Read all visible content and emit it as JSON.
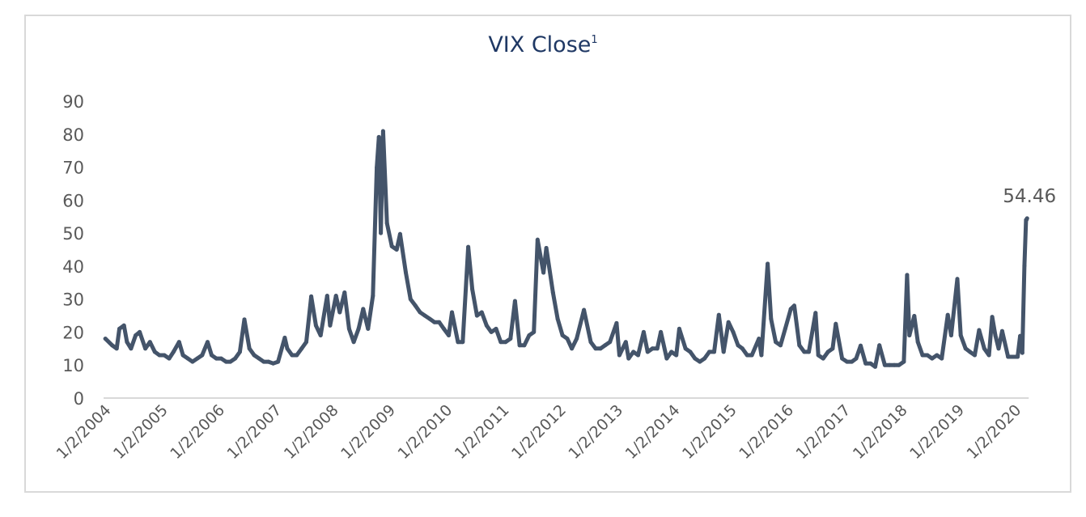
{
  "chart_data": {
    "type": "line",
    "title": "VIX Close",
    "title_footnote": "1",
    "xlabel": "",
    "ylabel": "",
    "ylim": [
      0,
      90
    ],
    "yticks": [
      0,
      10,
      20,
      30,
      40,
      50,
      60,
      70,
      80,
      90
    ],
    "xtick_labels": [
      "1/2/2004",
      "1/2/2005",
      "1/2/2006",
      "1/2/2007",
      "1/2/2008",
      "1/2/2009",
      "1/2/2010",
      "1/2/2011",
      "1/2/2012",
      "1/2/2013",
      "1/2/2014",
      "1/2/2015",
      "1/2/2016",
      "1/2/2017",
      "1/2/2018",
      "1/2/2019",
      "1/2/2020"
    ],
    "grid": false,
    "legend": "none",
    "line_color": "#44546a",
    "title_color": "#1f3864",
    "annotation": {
      "date": "2020-03-16",
      "label": "54.46"
    },
    "series": [
      {
        "points": [
          [
            "2004-01-02",
            18
          ],
          [
            "2004-02-15",
            16
          ],
          [
            "2004-03-15",
            15
          ],
          [
            "2004-04-01",
            21
          ],
          [
            "2004-05-01",
            22
          ],
          [
            "2004-05-20",
            17
          ],
          [
            "2004-06-15",
            15
          ],
          [
            "2004-07-15",
            19
          ],
          [
            "2004-08-10",
            20
          ],
          [
            "2004-09-15",
            15
          ],
          [
            "2004-10-15",
            17
          ],
          [
            "2004-11-15",
            14
          ],
          [
            "2004-12-15",
            13
          ],
          [
            "2005-01-15",
            13
          ],
          [
            "2005-02-15",
            12
          ],
          [
            "2005-03-15",
            14
          ],
          [
            "2005-04-20",
            17
          ],
          [
            "2005-05-15",
            13
          ],
          [
            "2005-06-15",
            12
          ],
          [
            "2005-07-15",
            11
          ],
          [
            "2005-08-15",
            12
          ],
          [
            "2005-09-15",
            13
          ],
          [
            "2005-10-20",
            17
          ],
          [
            "2005-11-15",
            13
          ],
          [
            "2005-12-15",
            12
          ],
          [
            "2006-01-15",
            12
          ],
          [
            "2006-02-15",
            11
          ],
          [
            "2006-03-15",
            11
          ],
          [
            "2006-04-15",
            12
          ],
          [
            "2006-05-15",
            14
          ],
          [
            "2006-06-13",
            23.8
          ],
          [
            "2006-07-15",
            15
          ],
          [
            "2006-08-15",
            13
          ],
          [
            "2006-09-15",
            12
          ],
          [
            "2006-10-15",
            11
          ],
          [
            "2006-11-15",
            11
          ],
          [
            "2006-12-15",
            10.5
          ],
          [
            "2007-01-15",
            11
          ],
          [
            "2007-02-27",
            18.3
          ],
          [
            "2007-03-15",
            15
          ],
          [
            "2007-04-15",
            13
          ],
          [
            "2007-05-15",
            13
          ],
          [
            "2007-06-15",
            15
          ],
          [
            "2007-07-15",
            17
          ],
          [
            "2007-08-16",
            30.8
          ],
          [
            "2007-09-15",
            22
          ],
          [
            "2007-10-15",
            19
          ],
          [
            "2007-11-26",
            31
          ],
          [
            "2007-12-15",
            22
          ],
          [
            "2008-01-22",
            31
          ],
          [
            "2008-02-15",
            26
          ],
          [
            "2008-03-17",
            32
          ],
          [
            "2008-04-15",
            21
          ],
          [
            "2008-05-15",
            17
          ],
          [
            "2008-06-15",
            21
          ],
          [
            "2008-07-15",
            27
          ],
          [
            "2008-08-15",
            21
          ],
          [
            "2008-09-15",
            31
          ],
          [
            "2008-10-10",
            69.9
          ],
          [
            "2008-10-24",
            79.1
          ],
          [
            "2008-11-05",
            50
          ],
          [
            "2008-11-20",
            80.9
          ],
          [
            "2008-12-15",
            53
          ],
          [
            "2009-01-15",
            46
          ],
          [
            "2009-02-15",
            45
          ],
          [
            "2009-03-09",
            49.7
          ],
          [
            "2009-04-15",
            38
          ],
          [
            "2009-05-15",
            30
          ],
          [
            "2009-06-15",
            28
          ],
          [
            "2009-07-15",
            26
          ],
          [
            "2009-08-15",
            25
          ],
          [
            "2009-09-15",
            24
          ],
          [
            "2009-10-15",
            23
          ],
          [
            "2009-11-15",
            23
          ],
          [
            "2009-12-15",
            21
          ],
          [
            "2010-01-15",
            19
          ],
          [
            "2010-02-05",
            26
          ],
          [
            "2010-03-15",
            17
          ],
          [
            "2010-04-15",
            17
          ],
          [
            "2010-05-20",
            45.8
          ],
          [
            "2010-06-15",
            33
          ],
          [
            "2010-07-15",
            25
          ],
          [
            "2010-08-15",
            26
          ],
          [
            "2010-09-15",
            22
          ],
          [
            "2010-10-15",
            20
          ],
          [
            "2010-11-15",
            21
          ],
          [
            "2010-12-15",
            17
          ],
          [
            "2011-01-15",
            17
          ],
          [
            "2011-02-15",
            18
          ],
          [
            "2011-03-16",
            29.4
          ],
          [
            "2011-04-15",
            16
          ],
          [
            "2011-05-15",
            16
          ],
          [
            "2011-06-15",
            19
          ],
          [
            "2011-07-15",
            20
          ],
          [
            "2011-08-08",
            48
          ],
          [
            "2011-09-15",
            38
          ],
          [
            "2011-10-03",
            45.5
          ],
          [
            "2011-11-15",
            32
          ],
          [
            "2011-12-15",
            24
          ],
          [
            "2012-01-15",
            19
          ],
          [
            "2012-02-15",
            18
          ],
          [
            "2012-03-15",
            15
          ],
          [
            "2012-04-15",
            18
          ],
          [
            "2012-06-01",
            26.7
          ],
          [
            "2012-07-15",
            17
          ],
          [
            "2012-08-15",
            15
          ],
          [
            "2012-09-15",
            15
          ],
          [
            "2012-10-15",
            16
          ],
          [
            "2012-11-15",
            17
          ],
          [
            "2012-12-28",
            22.7
          ],
          [
            "2013-01-15",
            13
          ],
          [
            "2013-02-25",
            17
          ],
          [
            "2013-03-15",
            12
          ],
          [
            "2013-04-15",
            14
          ],
          [
            "2013-05-15",
            13
          ],
          [
            "2013-06-20",
            20
          ],
          [
            "2013-07-15",
            14
          ],
          [
            "2013-08-15",
            15
          ],
          [
            "2013-09-15",
            15
          ],
          [
            "2013-10-08",
            20
          ],
          [
            "2013-11-15",
            12
          ],
          [
            "2013-12-15",
            14
          ],
          [
            "2014-01-15",
            13
          ],
          [
            "2014-02-03",
            21
          ],
          [
            "2014-03-15",
            15
          ],
          [
            "2014-04-15",
            14
          ],
          [
            "2014-05-15",
            12
          ],
          [
            "2014-06-15",
            11
          ],
          [
            "2014-07-15",
            12
          ],
          [
            "2014-08-15",
            14
          ],
          [
            "2014-09-15",
            14
          ],
          [
            "2014-10-15",
            25.2
          ],
          [
            "2014-11-15",
            14
          ],
          [
            "2014-12-16",
            23
          ],
          [
            "2015-01-15",
            20
          ],
          [
            "2015-02-15",
            16
          ],
          [
            "2015-03-15",
            15
          ],
          [
            "2015-04-15",
            13
          ],
          [
            "2015-05-15",
            13
          ],
          [
            "2015-06-29",
            18
          ],
          [
            "2015-07-15",
            13
          ],
          [
            "2015-08-24",
            40.7
          ],
          [
            "2015-09-15",
            24
          ],
          [
            "2015-10-15",
            17
          ],
          [
            "2015-11-15",
            16
          ],
          [
            "2015-12-15",
            21
          ],
          [
            "2016-01-20",
            27
          ],
          [
            "2016-02-11",
            28
          ],
          [
            "2016-03-15",
            16
          ],
          [
            "2016-04-15",
            14
          ],
          [
            "2016-05-15",
            14
          ],
          [
            "2016-06-27",
            25.8
          ],
          [
            "2016-07-15",
            13
          ],
          [
            "2016-08-15",
            12
          ],
          [
            "2016-09-15",
            14
          ],
          [
            "2016-10-15",
            15
          ],
          [
            "2016-11-04",
            22.5
          ],
          [
            "2016-12-15",
            12
          ],
          [
            "2017-01-15",
            11
          ],
          [
            "2017-02-15",
            11
          ],
          [
            "2017-03-15",
            12
          ],
          [
            "2017-04-13",
            15.9
          ],
          [
            "2017-05-15",
            10.5
          ],
          [
            "2017-06-15",
            10.5
          ],
          [
            "2017-07-15",
            9.5
          ],
          [
            "2017-08-11",
            16
          ],
          [
            "2017-09-15",
            10
          ],
          [
            "2017-10-15",
            10
          ],
          [
            "2017-11-15",
            10
          ],
          [
            "2017-12-15",
            10
          ],
          [
            "2018-01-15",
            11
          ],
          [
            "2018-02-05",
            37.3
          ],
          [
            "2018-02-20",
            19
          ],
          [
            "2018-03-23",
            24.9
          ],
          [
            "2018-04-15",
            17
          ],
          [
            "2018-05-15",
            13
          ],
          [
            "2018-06-15",
            13
          ],
          [
            "2018-07-15",
            12
          ],
          [
            "2018-08-15",
            13
          ],
          [
            "2018-09-15",
            12
          ],
          [
            "2018-10-24",
            25.2
          ],
          [
            "2018-11-15",
            19
          ],
          [
            "2018-12-24",
            36.1
          ],
          [
            "2019-01-15",
            19
          ],
          [
            "2019-02-15",
            15
          ],
          [
            "2019-03-15",
            14
          ],
          [
            "2019-04-15",
            13
          ],
          [
            "2019-05-13",
            20.6
          ],
          [
            "2019-06-15",
            15
          ],
          [
            "2019-07-15",
            13
          ],
          [
            "2019-08-05",
            24.6
          ],
          [
            "2019-08-25",
            19
          ],
          [
            "2019-09-15",
            15
          ],
          [
            "2019-10-08",
            20.3
          ],
          [
            "2019-11-15",
            12.5
          ],
          [
            "2019-12-15",
            12.5
          ],
          [
            "2020-01-15",
            12.5
          ],
          [
            "2020-01-31",
            18.8
          ],
          [
            "2020-02-14",
            13.7
          ],
          [
            "2020-02-28",
            40.1
          ],
          [
            "2020-03-09",
            54
          ],
          [
            "2020-03-12",
            54
          ],
          [
            "2020-03-16",
            54.46
          ]
        ]
      }
    ]
  }
}
